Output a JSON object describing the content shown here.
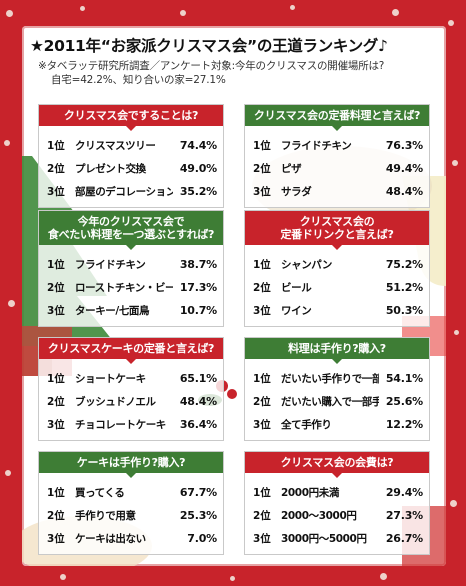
{
  "title": "★2011年“お家派クリスマス会”の王道ランキング♪",
  "subtitle_line1": "※タベラッテ研究所調査／アンケート対象:今年のクリスマスの開催場所は?",
  "subtitle_line2": "自宅=42.2%、知り合いの家=27.1%",
  "colors": {
    "frame": "#c8232b",
    "header_red": "#c8232b",
    "header_green": "#3e7d35"
  },
  "chart_data": [
    {
      "type": "table",
      "title": "クリスマス会ですることは?",
      "header_color": "red",
      "rows": [
        {
          "rank": "1位",
          "label": "クリスマスツリー",
          "value": "74.4%"
        },
        {
          "rank": "2位",
          "label": "プレゼント交換",
          "value": "49.0%"
        },
        {
          "rank": "3位",
          "label": "部屋のデコレーション",
          "value": "35.2%"
        }
      ]
    },
    {
      "type": "table",
      "title": "クリスマス会の定番料理と言えば?",
      "header_color": "green",
      "rows": [
        {
          "rank": "1位",
          "label": "フライドチキン",
          "value": "76.3%"
        },
        {
          "rank": "2位",
          "label": "ピザ",
          "value": "49.4%"
        },
        {
          "rank": "3位",
          "label": "サラダ",
          "value": "48.4%"
        }
      ]
    },
    {
      "type": "table",
      "title": "今年のクリスマス会で\n食べたい料理を一つ選ぶとすれば?",
      "header_color": "green",
      "rows": [
        {
          "rank": "1位",
          "label": "フライドチキン",
          "value": "38.7%"
        },
        {
          "rank": "2位",
          "label": "ローストチキン・ビーフ",
          "value": "17.3%"
        },
        {
          "rank": "3位",
          "label": "ターキー/七面鳥",
          "value": "10.7%"
        }
      ]
    },
    {
      "type": "table",
      "title": "クリスマス会の\n定番ドリンクと言えば?",
      "header_color": "red",
      "rows": [
        {
          "rank": "1位",
          "label": "シャンパン",
          "value": "75.2%"
        },
        {
          "rank": "2位",
          "label": "ビール",
          "value": "51.2%"
        },
        {
          "rank": "3位",
          "label": "ワイン",
          "value": "50.3%"
        }
      ]
    },
    {
      "type": "table",
      "title": "クリスマスケーキの定番と言えば?",
      "header_color": "red",
      "rows": [
        {
          "rank": "1位",
          "label": "ショートケーキ",
          "value": "65.1%"
        },
        {
          "rank": "2位",
          "label": "ブッシュドノエル",
          "value": "48.4%"
        },
        {
          "rank": "3位",
          "label": "チョコレートケーキ",
          "value": "36.4%"
        }
      ]
    },
    {
      "type": "table",
      "title": "料理は手作り?購入?",
      "header_color": "green",
      "rows": [
        {
          "rank": "1位",
          "label": "だいたい手作りで一部購入",
          "value": "54.1%"
        },
        {
          "rank": "2位",
          "label": "だいたい購入で一部手作り",
          "value": "25.6%"
        },
        {
          "rank": "3位",
          "label": "全て手作り",
          "value": "12.2%"
        }
      ]
    },
    {
      "type": "table",
      "title": "ケーキは手作り?購入?",
      "header_color": "green",
      "rows": [
        {
          "rank": "1位",
          "label": "買ってくる",
          "value": "67.7%"
        },
        {
          "rank": "2位",
          "label": "手作りで用意",
          "value": "25.3%"
        },
        {
          "rank": "3位",
          "label": "ケーキは出ない",
          "value": "7.0%"
        }
      ]
    },
    {
      "type": "table",
      "title": "クリスマス会の会費は?",
      "header_color": "red",
      "rows": [
        {
          "rank": "1位",
          "label": "2000円未満",
          "value": "29.4%"
        },
        {
          "rank": "2位",
          "label": "2000〜3000円",
          "value": "27.3%"
        },
        {
          "rank": "3位",
          "label": "3000円〜5000円",
          "value": "26.7%"
        }
      ]
    }
  ]
}
